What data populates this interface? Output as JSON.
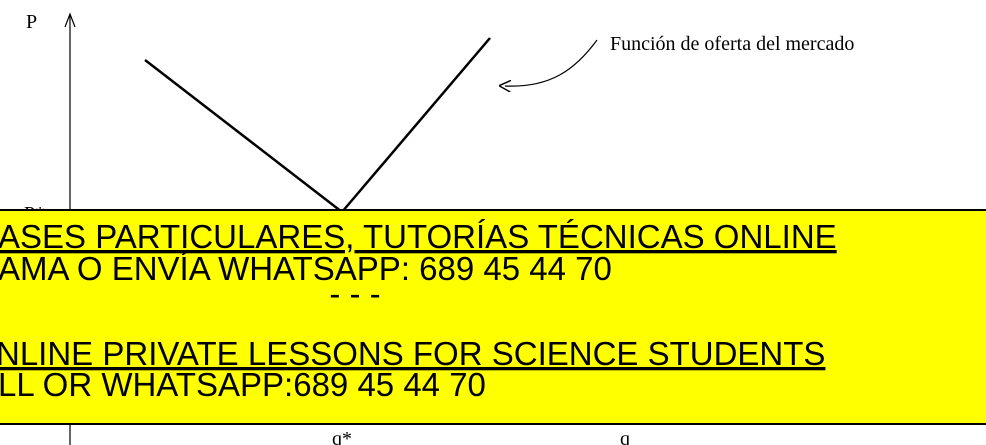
{
  "axis": {
    "y_label": "P",
    "price_label": "P*",
    "q_star_label": "q*",
    "q_label": "q"
  },
  "annotation": "Función de oferta del mercado",
  "banner": {
    "lines": [
      "ASES PARTICULARES, TUTORÍAS TÉCNICAS ONLINE",
      "AMA O ENVÍA WHATSAPP: 689 45 44 70",
      "- - -",
      "NLINE PRIVATE LESSONS FOR SCIENCE STUDENTS",
      "LL OR WHATSAPP:689 45 44 70"
    ]
  }
}
